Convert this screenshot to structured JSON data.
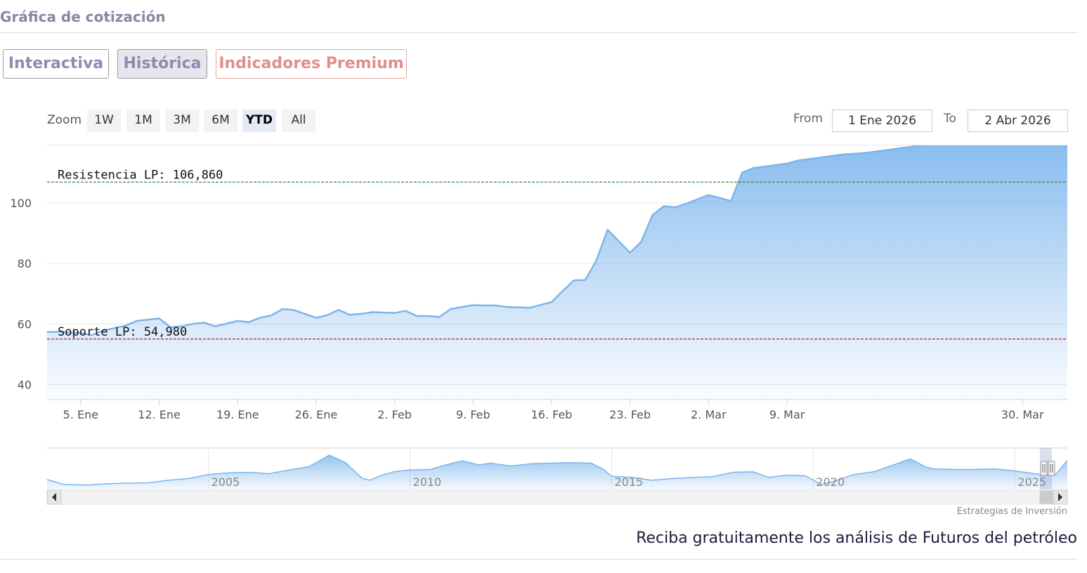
{
  "section": {
    "title": "Gráfica de cotización"
  },
  "tabs": {
    "interactiva": "Interactiva",
    "historica": "Histórica",
    "premium": "Indicadores Premium"
  },
  "zoom": {
    "label": "Zoom",
    "buttons": [
      "1W",
      "1M",
      "3M",
      "6M",
      "YTD",
      "All"
    ],
    "selected": "YTD"
  },
  "range": {
    "from_label": "From",
    "from_value": "1 Ene 2026",
    "to_label": "To",
    "to_value": "2 Abr 2026"
  },
  "credit": "Estrategias de Inversión",
  "cta": "Reciba gratuitamente los análisis de Futuros del petróleo",
  "colors": {
    "line": "#7cb5ec",
    "resistance": "#2e7d32",
    "support": "#b71c1c"
  },
  "chart_data": {
    "type": "area",
    "yticks": [
      40,
      60,
      80,
      100
    ],
    "ylim": [
      35,
      119
    ],
    "xticks": [
      "5. Ene",
      "12. Ene",
      "19. Ene",
      "26. Ene",
      "2. Feb",
      "9. Feb",
      "16. Feb",
      "23. Feb",
      "2. Mar",
      "9. Mar",
      "30. Mar"
    ],
    "xtick_days": [
      4,
      11,
      18,
      25,
      32,
      39,
      46,
      53,
      60,
      67,
      88
    ],
    "xlim": [
      1,
      92
    ],
    "series": [
      {
        "x": [
          1,
          2,
          4,
          5,
          6,
          7,
          8,
          9,
          11,
          12,
          13,
          14,
          15,
          16,
          18,
          19,
          20,
          21,
          22,
          23,
          25,
          26,
          27,
          28,
          29,
          30,
          32,
          33,
          34,
          35,
          36,
          37,
          39,
          40,
          41,
          42,
          43,
          44,
          46,
          47,
          48,
          49,
          50,
          51,
          53,
          54,
          55,
          56,
          57,
          58,
          60,
          61,
          62,
          63,
          64,
          65,
          67,
          68,
          69,
          70,
          71,
          72,
          74,
          75,
          76,
          77,
          78,
          79,
          81,
          82,
          83,
          84,
          85,
          86,
          88,
          89,
          90,
          91,
          92
        ],
        "values": [
          57.3,
          57.4,
          57.0,
          56.3,
          57.8,
          58.6,
          59.4,
          61.0,
          61.8,
          58.9,
          59.2,
          60.0,
          60.4,
          59.2,
          61.0,
          60.6,
          62.0,
          62.8,
          64.9,
          64.6,
          62.0,
          62.9,
          64.6,
          63.0,
          63.3,
          63.9,
          63.6,
          64.3,
          62.6,
          62.6,
          62.3,
          64.9,
          66.2,
          66.1,
          66.1,
          65.6,
          65.5,
          65.3,
          67.2,
          70.9,
          74.4,
          74.5,
          81.0,
          91.1,
          83.5,
          87.2,
          95.9,
          98.9,
          98.5,
          99.7,
          102.6,
          101.6,
          100.6,
          110.0,
          111.5,
          112.0,
          113.0,
          114.0,
          114.5,
          115.0,
          115.5,
          116.0,
          116.5,
          117.0,
          117.5,
          118.0,
          118.5,
          119.0,
          119.5,
          120.0,
          120.5,
          121.0,
          121.5,
          122.0,
          122.5,
          123.0,
          123.5,
          124.0,
          124.5
        ]
      }
    ],
    "plot_lines": [
      {
        "label": "Resistencia LP: 106,860",
        "value": 106.86
      },
      {
        "label": "Soporte LP: 54,980",
        "value": 54.98
      }
    ],
    "navigator": {
      "year_labels": [
        "2005",
        "2010",
        "2015",
        "2020",
        "2025"
      ],
      "year_values": [
        2005,
        2010,
        2015,
        2020,
        2025
      ],
      "xlim": [
        2001,
        2026.3
      ],
      "ylim": [
        10,
        155
      ],
      "x": [
        2001.0,
        2001.4,
        2002.0,
        2002.5,
        2003.0,
        2003.5,
        2004.0,
        2004.5,
        2005.0,
        2005.5,
        2006.0,
        2006.5,
        2007.0,
        2007.5,
        2008.0,
        2008.4,
        2008.8,
        2009.0,
        2009.3,
        2009.6,
        2010.0,
        2010.5,
        2011.0,
        2011.3,
        2011.7,
        2012.0,
        2012.5,
        2013.0,
        2013.5,
        2014.0,
        2014.5,
        2014.8,
        2015.0,
        2015.5,
        2016.0,
        2016.5,
        2017.0,
        2017.5,
        2018.0,
        2018.5,
        2018.9,
        2019.3,
        2019.8,
        2020.2,
        2020.5,
        2021.0,
        2021.5,
        2022.0,
        2022.4,
        2022.8,
        2023.0,
        2023.5,
        2024.0,
        2024.5,
        2025.0,
        2025.5,
        2026.0,
        2026.3
      ],
      "values": [
        45,
        28,
        25,
        30,
        32,
        33,
        42,
        48,
        62,
        68,
        70,
        65,
        78,
        90,
        130,
        104,
        50,
        42,
        60,
        72,
        78,
        80,
        100,
        110,
        96,
        102,
        92,
        100,
        102,
        104,
        102,
        80,
        56,
        52,
        42,
        48,
        52,
        55,
        70,
        72,
        52,
        60,
        58,
        28,
        38,
        62,
        72,
        96,
        117,
        88,
        82,
        80,
        80,
        82,
        75,
        65,
        60,
        112
      ]
    }
  }
}
